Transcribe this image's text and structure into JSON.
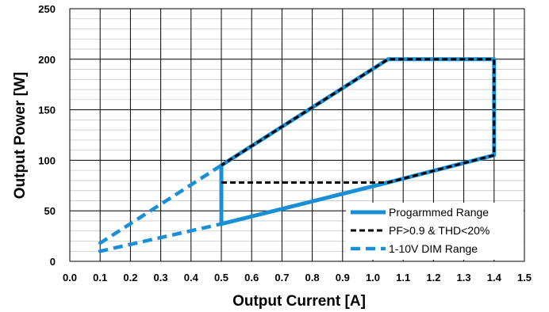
{
  "chart_data": {
    "type": "line",
    "title": "",
    "xlabel": "Output Current [A]",
    "ylabel": "Output  Power [W]",
    "xlim": [
      0.0,
      1.5
    ],
    "ylim": [
      0,
      250
    ],
    "x_ticks": [
      0.0,
      0.1,
      0.2,
      0.3,
      0.4,
      0.5,
      0.6,
      0.7,
      0.8,
      0.9,
      1.0,
      1.1,
      1.2,
      1.3,
      1.4,
      1.5
    ],
    "x_tick_labels": [
      "0.0",
      "0.1",
      "0.2",
      "0.3",
      "0.4",
      "0.5",
      "0.6",
      "0.7",
      "0.8",
      "0.9",
      "1.0",
      "1.1",
      "1.2",
      "1.3",
      "1.4",
      "1.5"
    ],
    "y_ticks": [
      0,
      50,
      100,
      150,
      200,
      250
    ],
    "y_tick_labels": [
      "0",
      "50",
      "100",
      "150",
      "200",
      "250"
    ],
    "grid": {
      "major": true,
      "minor_y": true,
      "minor_y_step": 10
    },
    "legend_position": "bottom-right",
    "series": [
      {
        "name": "Progarmmed Range",
        "color": "#1b8fd6",
        "style": "solid",
        "points": [
          [
            0.5,
            37
          ],
          [
            0.5,
            95
          ],
          [
            1.05,
            200
          ],
          [
            1.4,
            200
          ],
          [
            1.4,
            105
          ],
          [
            1.05,
            78
          ],
          [
            0.5,
            37
          ]
        ]
      },
      {
        "name": "PF>0.9 & THD<20%",
        "color": "#000000",
        "style": "dashed",
        "points": [
          [
            0.5,
            78
          ],
          [
            1.05,
            78
          ],
          [
            1.4,
            105
          ],
          [
            1.4,
            200
          ],
          [
            1.05,
            200
          ],
          [
            0.5,
            95
          ]
        ]
      },
      {
        "name": "1-10V DIM Range",
        "color": "#1b8fd6",
        "style": "dashed",
        "points": [
          [
            0.5,
            95
          ],
          [
            0.1,
            18
          ],
          [
            0.1,
            10
          ],
          [
            0.5,
            37
          ]
        ]
      }
    ]
  }
}
